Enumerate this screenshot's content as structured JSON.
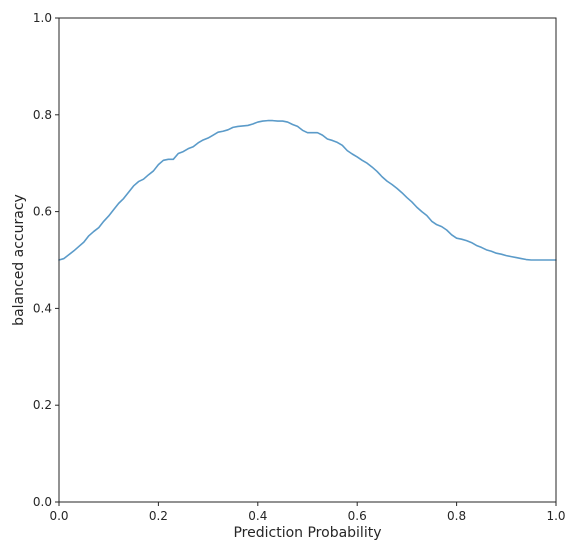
{
  "chart_data": {
    "type": "line",
    "title": "",
    "xlabel": "Prediction Probability",
    "ylabel": "balanced accuracy",
    "xlim": [
      0.0,
      1.0
    ],
    "ylim": [
      0.0,
      1.0
    ],
    "xticks": [
      "0.0",
      "0.2",
      "0.4",
      "0.6",
      "0.8",
      "1.0"
    ],
    "yticks": [
      "0.0",
      "0.2",
      "0.4",
      "0.6",
      "0.8",
      "1.0"
    ],
    "grid": false,
    "legend": "none",
    "series": [
      {
        "color": "#5b9bc9",
        "x": [
          0.0,
          0.01,
          0.02,
          0.03,
          0.04,
          0.05,
          0.06,
          0.07,
          0.08,
          0.09,
          0.1,
          0.11,
          0.12,
          0.13,
          0.14,
          0.15,
          0.16,
          0.17,
          0.18,
          0.19,
          0.2,
          0.21,
          0.22,
          0.23,
          0.24,
          0.25,
          0.26,
          0.27,
          0.28,
          0.29,
          0.3,
          0.31,
          0.32,
          0.33,
          0.34,
          0.35,
          0.36,
          0.37,
          0.38,
          0.39,
          0.4,
          0.41,
          0.42,
          0.43,
          0.44,
          0.45,
          0.46,
          0.47,
          0.48,
          0.49,
          0.5,
          0.51,
          0.52,
          0.53,
          0.54,
          0.55,
          0.56,
          0.57,
          0.58,
          0.59,
          0.6,
          0.61,
          0.62,
          0.63,
          0.64,
          0.65,
          0.66,
          0.67,
          0.68,
          0.69,
          0.7,
          0.71,
          0.72,
          0.73,
          0.74,
          0.75,
          0.76,
          0.77,
          0.78,
          0.79,
          0.8,
          0.81,
          0.82,
          0.83,
          0.84,
          0.85,
          0.86,
          0.87,
          0.88,
          0.89,
          0.9,
          0.91,
          0.92,
          0.93,
          0.94,
          0.95,
          0.96,
          0.97,
          0.98,
          0.99,
          1.0
        ],
        "y": [
          0.5,
          0.503,
          0.511,
          0.519,
          0.528,
          0.537,
          0.55,
          0.559,
          0.567,
          0.58,
          0.591,
          0.604,
          0.617,
          0.627,
          0.64,
          0.653,
          0.662,
          0.667,
          0.676,
          0.684,
          0.697,
          0.706,
          0.708,
          0.708,
          0.72,
          0.724,
          0.73,
          0.734,
          0.742,
          0.748,
          0.752,
          0.758,
          0.764,
          0.766,
          0.769,
          0.774,
          0.776,
          0.777,
          0.778,
          0.781,
          0.785,
          0.787,
          0.788,
          0.788,
          0.787,
          0.787,
          0.785,
          0.78,
          0.776,
          0.768,
          0.763,
          0.763,
          0.763,
          0.758,
          0.75,
          0.747,
          0.743,
          0.737,
          0.726,
          0.719,
          0.713,
          0.706,
          0.7,
          0.692,
          0.683,
          0.672,
          0.663,
          0.656,
          0.648,
          0.639,
          0.629,
          0.62,
          0.609,
          0.6,
          0.592,
          0.58,
          0.573,
          0.569,
          0.562,
          0.552,
          0.545,
          0.543,
          0.54,
          0.536,
          0.53,
          0.526,
          0.521,
          0.518,
          0.514,
          0.512,
          0.509,
          0.507,
          0.505,
          0.503,
          0.501,
          0.5,
          0.5,
          0.5,
          0.5,
          0.5,
          0.5
        ]
      }
    ]
  }
}
